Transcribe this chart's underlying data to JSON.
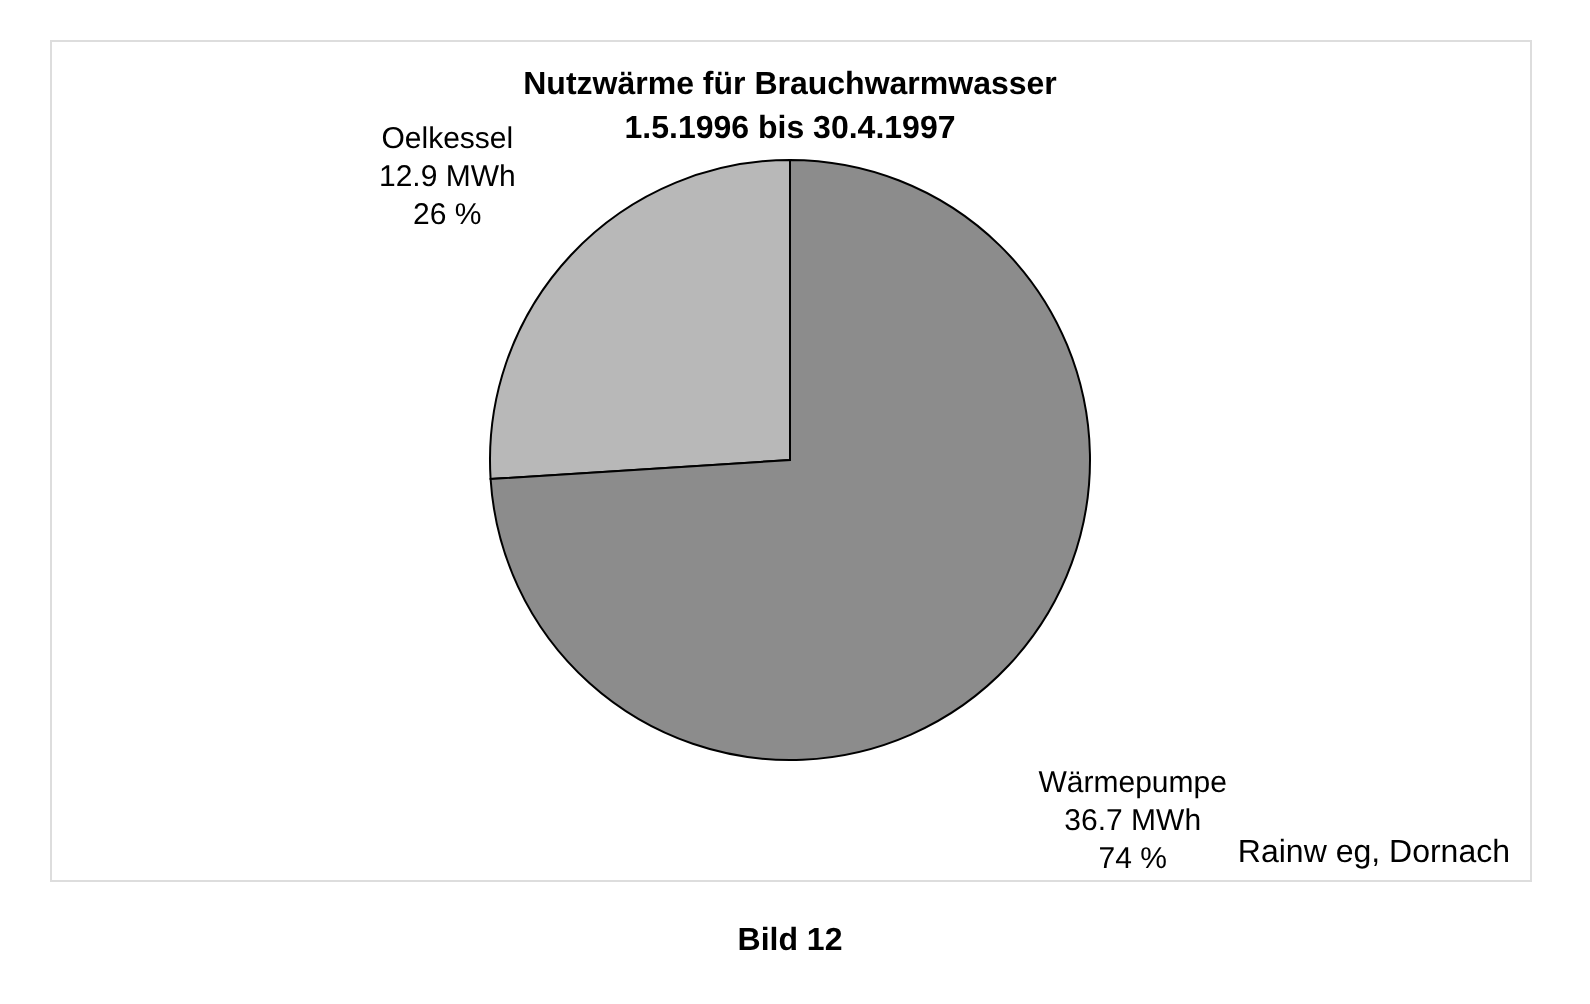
{
  "chart_data": {
    "type": "pie",
    "title": "Nutzwärme für Brauchwarmwasser",
    "subtitle": "1.5.1996 bis 30.4.1997",
    "categories": [
      "Oelkessel",
      "Wärmepumpe"
    ],
    "values": [
      12.9,
      36.7
    ],
    "colors": [
      "#b8b8b8",
      "#8c8c8c"
    ],
    "value_labels": [
      "12.9 MWh\n26 %",
      "36.7 MWh\n74 %"
    ],
    "annotations": [
      "Rainw eg, Dornach",
      "Bild 12"
    ],
    "legend": false
  }
}
